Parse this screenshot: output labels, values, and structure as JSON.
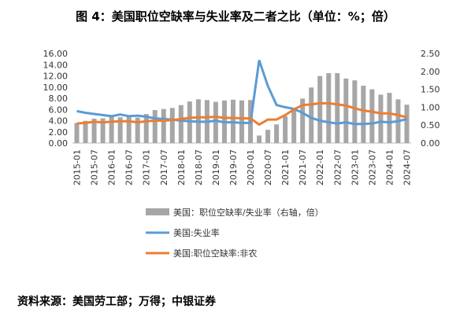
{
  "chart_data": {
    "type": "bar_line_combo",
    "title": "图 4：美国职位空缺率与失业率及二者之比（单位：%；倍）",
    "source": "资料来源：美国劳工部；万得；中银证券",
    "categories": [
      "2015-01",
      null,
      "2015-07",
      null,
      "2016-01",
      null,
      "2016-07",
      null,
      "2017-01",
      null,
      "2017-07",
      null,
      "2018-01",
      null,
      "2018-07",
      null,
      "2019-01",
      null,
      "2019-07",
      null,
      "2020-01",
      null,
      "2020-07",
      null,
      "2021-01",
      null,
      "2021-07",
      null,
      "2022-01",
      null,
      "2022-07",
      null,
      "2023-01",
      null,
      "2023-07",
      null,
      "2024-01",
      null,
      "2024-07"
    ],
    "series": [
      {
        "name": "美国：职位空缺率/失业率（右轴，倍）",
        "type": "bar",
        "axis": "y2",
        "color": "#a6a6a6",
        "values": [
          0.56,
          0.62,
          0.68,
          0.69,
          0.77,
          0.72,
          0.77,
          0.71,
          0.81,
          0.92,
          0.95,
          0.98,
          1.06,
          1.16,
          1.22,
          1.2,
          1.15,
          1.19,
          1.21,
          1.19,
          1.2,
          0.21,
          0.37,
          0.52,
          0.75,
          0.96,
          1.24,
          1.55,
          1.87,
          1.95,
          1.95,
          1.8,
          1.75,
          1.6,
          1.5,
          1.35,
          1.4,
          1.22,
          1.07
        ]
      },
      {
        "name": "美国:失业率",
        "type": "line",
        "color": "#5b9bd5",
        "values": [
          5.7,
          5.4,
          5.2,
          5.0,
          4.8,
          5.1,
          4.8,
          4.9,
          4.7,
          4.4,
          4.3,
          4.2,
          4.0,
          3.9,
          3.8,
          3.8,
          4.0,
          3.7,
          3.7,
          3.6,
          3.6,
          14.8,
          10.2,
          6.8,
          6.4,
          6.1,
          5.4,
          4.5,
          4.0,
          3.7,
          3.5,
          3.7,
          3.4,
          3.4,
          3.5,
          3.8,
          3.7,
          3.9,
          4.3
        ]
      },
      {
        "name": "美国:职位空缺率:非农",
        "type": "line",
        "color": "#ed7d31",
        "values": [
          3.5,
          3.6,
          3.8,
          3.7,
          3.8,
          3.9,
          3.9,
          3.7,
          3.9,
          4.0,
          4.0,
          4.1,
          4.3,
          4.5,
          4.6,
          4.6,
          4.7,
          4.5,
          4.5,
          4.4,
          4.4,
          3.3,
          4.2,
          4.2,
          5.0,
          6.0,
          6.8,
          6.9,
          7.1,
          7.1,
          6.9,
          6.7,
          6.2,
          5.8,
          5.6,
          5.3,
          5.3,
          5.0,
          4.6
        ]
      }
    ],
    "ylim": [
      0,
      16
    ],
    "yticks": [
      {
        "value": 0,
        "label": "0.00"
      },
      {
        "value": 2,
        "label": "2.00"
      },
      {
        "value": 4,
        "label": "4.00"
      },
      {
        "value": 6,
        "label": "6.00"
      },
      {
        "value": 8,
        "label": "8.00"
      },
      {
        "value": 10,
        "label": "10.00"
      },
      {
        "value": 12,
        "label": "12.00"
      },
      {
        "value": 14,
        "label": "14.00"
      },
      {
        "value": 16,
        "label": "16.00"
      }
    ],
    "y2lim": [
      0,
      2.5
    ],
    "y2ticks": [
      {
        "value": 0,
        "label": "0.00"
      },
      {
        "value": 0.5,
        "label": "0.50"
      },
      {
        "value": 1,
        "label": "1.00"
      },
      {
        "value": 1.5,
        "label": "1.50"
      },
      {
        "value": 2,
        "label": "2.00"
      },
      {
        "value": 2.5,
        "label": "2.50"
      }
    ]
  }
}
